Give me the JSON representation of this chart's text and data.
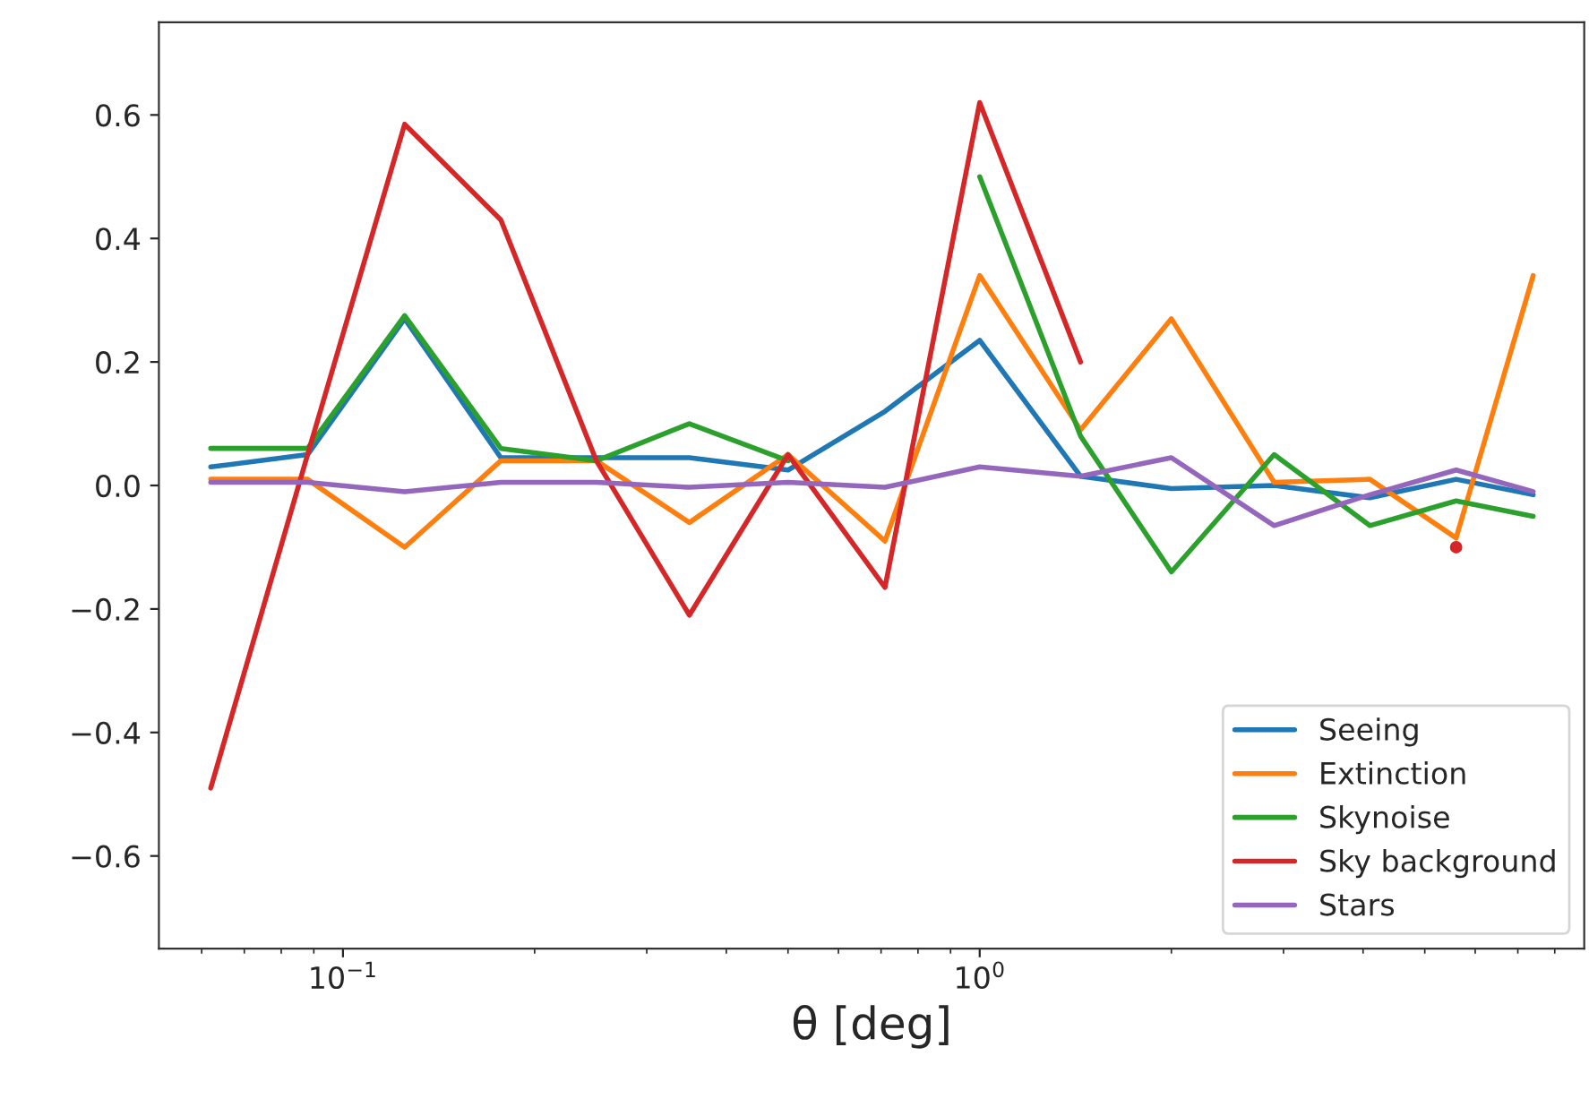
{
  "chart_data": {
    "type": "line",
    "xlabel": "θ [deg]",
    "log": "x",
    "x": [
      0.062,
      0.088,
      0.125,
      0.177,
      0.25,
      0.35,
      0.5,
      0.71,
      1.0,
      1.44,
      2.0,
      2.9,
      4.1,
      5.6,
      7.4
    ],
    "xlim": [
      0.0514,
      8.9
    ],
    "ylim": [
      -0.75,
      0.75
    ],
    "xticks": [
      {
        "value": 0.1,
        "label": "10$^{−1}$"
      },
      {
        "value": 1,
        "label": "10$^{0}$"
      }
    ],
    "yticks": [
      {
        "value": -0.6,
        "label": "−0.6"
      },
      {
        "value": -0.4,
        "label": "−0.4"
      },
      {
        "value": -0.2,
        "label": "−0.2"
      },
      {
        "value": 0.0,
        "label": "0.0"
      },
      {
        "value": 0.2,
        "label": "0.2"
      },
      {
        "value": 0.4,
        "label": "0.4"
      },
      {
        "value": 0.6,
        "label": "0.6"
      }
    ],
    "grid": false,
    "legend": "bottom right",
    "series": [
      {
        "name": "Seeing",
        "color": "#1f77b4",
        "values": [
          0.03,
          0.05,
          0.27,
          0.045,
          0.045,
          0.045,
          0.025,
          0.12,
          0.235,
          0.015,
          -0.005,
          0.0,
          -0.02,
          0.01,
          -0.015
        ]
      },
      {
        "name": "Extinction",
        "color": "#ff7f0e",
        "values": [
          0.01,
          0.01,
          -0.1,
          0.04,
          0.04,
          -0.06,
          0.05,
          -0.09,
          0.34,
          0.09,
          0.27,
          0.005,
          0.01,
          -0.085,
          0.34
        ]
      },
      {
        "name": "Skynoise",
        "color": "#2ca02c",
        "values": [
          0.06,
          0.06,
          0.275,
          0.06,
          0.04,
          0.1,
          0.04,
          null,
          0.5,
          0.08,
          -0.14,
          0.05,
          -0.065,
          -0.025,
          -0.05
        ]
      },
      {
        "name": "Sky background",
        "color": "#d62728",
        "values": [
          -0.49,
          0.05,
          0.585,
          0.43,
          0.04,
          -0.21,
          0.05,
          -0.165,
          0.62,
          0.2,
          null,
          null,
          null,
          -0.1,
          null
        ]
      },
      {
        "name": "Stars",
        "color": "#9467bd",
        "values": [
          0.005,
          0.005,
          -0.01,
          0.005,
          0.005,
          -0.003,
          0.005,
          -0.003,
          0.03,
          0.015,
          0.045,
          -0.065,
          -0.015,
          0.025,
          -0.01
        ]
      }
    ]
  }
}
